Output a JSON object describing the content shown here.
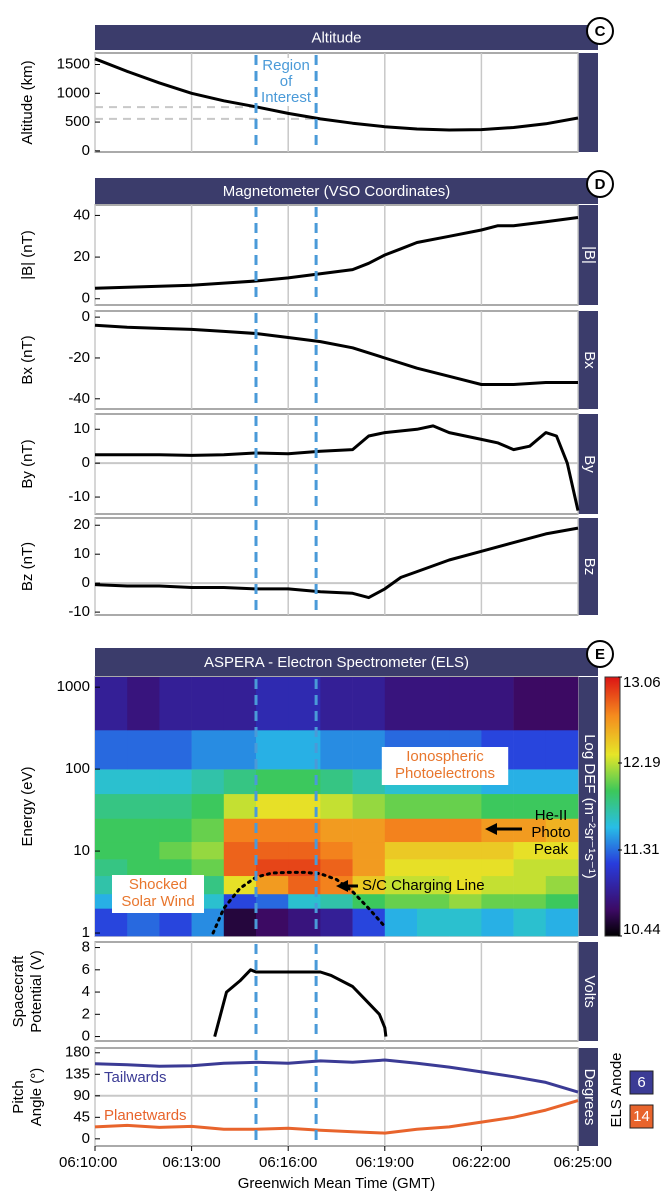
{
  "time_axis": {
    "xlim": [
      "06:10:00",
      "06:25:00"
    ],
    "xticks": [
      "06:10:00",
      "06:13:00",
      "06:16:00",
      "06:19:00",
      "06:22:00",
      "06:25:00"
    ],
    "xlabel": "Greenwich Mean Time (GMT)",
    "grid": true
  },
  "region_of_interest": {
    "x": [
      "06:15:00",
      "06:16:52"
    ],
    "label": [
      "Region",
      "of",
      "Interest"
    ],
    "color": "#4a9ad8"
  },
  "sections": [
    {
      "letter": "C",
      "title": "Altitude"
    },
    {
      "letter": "D",
      "title": "Magnetometer (VSO Coordinates)"
    },
    {
      "letter": "E",
      "title": "ASPERA - Electron Spectrometer (ELS)"
    }
  ],
  "chart_data": [
    {
      "type": "line",
      "ylabel": [
        "Altitude (km)"
      ],
      "ylim": [
        -20,
        1700
      ],
      "yticks": [
        0,
        500,
        1000,
        1500
      ],
      "hlines": [
        {
          "y": 760,
          "x": [
            "06:10:00",
            "06:15:00"
          ],
          "dash": true
        },
        {
          "y": 555,
          "x": [
            "06:10:00",
            "06:16:52"
          ],
          "dash": true
        }
      ],
      "series": [
        {
          "color": "#000000",
          "x": [
            "06:10:00",
            "06:11:00",
            "06:12:00",
            "06:13:00",
            "06:14:00",
            "06:15:00",
            "06:16:00",
            "06:17:00",
            "06:18:00",
            "06:19:00",
            "06:20:00",
            "06:21:00",
            "06:22:00",
            "06:23:00",
            "06:24:00",
            "06:25:00"
          ],
          "values": [
            1600,
            1380,
            1180,
            1000,
            870,
            765,
            650,
            555,
            480,
            420,
            380,
            362,
            370,
            405,
            470,
            570
          ]
        }
      ]
    },
    {
      "type": "line",
      "ylabel": [
        "|B| (nT)"
      ],
      "side_label": "|B|",
      "ylim": [
        -3,
        45
      ],
      "yticks": [
        0,
        20,
        40
      ],
      "series": [
        {
          "color": "#000000",
          "x": [
            "06:10:00",
            "06:11:00",
            "06:12:00",
            "06:13:00",
            "06:14:00",
            "06:15:00",
            "06:16:00",
            "06:17:00",
            "06:18:00",
            "06:18:30",
            "06:19:00",
            "06:19:30",
            "06:20:00",
            "06:21:00",
            "06:22:00",
            "06:22:30",
            "06:23:00",
            "06:24:00",
            "06:24:30",
            "06:25:00"
          ],
          "values": [
            5,
            5.5,
            6,
            6.5,
            7.5,
            8.5,
            10,
            12,
            14,
            17,
            21,
            24,
            27,
            30,
            33,
            35,
            35,
            37,
            38,
            39
          ]
        }
      ]
    },
    {
      "type": "line",
      "ylabel": [
        "Bx (nT)"
      ],
      "side_label": "Bx",
      "ylim": [
        -45,
        3
      ],
      "yticks": [
        0,
        -20,
        -40
      ],
      "series": [
        {
          "color": "#000000",
          "x": [
            "06:10:00",
            "06:11:00",
            "06:12:00",
            "06:13:00",
            "06:14:00",
            "06:15:00",
            "06:16:00",
            "06:17:00",
            "06:18:00",
            "06:19:00",
            "06:20:00",
            "06:21:00",
            "06:22:00",
            "06:23:00",
            "06:24:00",
            "06:25:00"
          ],
          "values": [
            -4,
            -5,
            -5.5,
            -6,
            -7,
            -8,
            -10,
            -12,
            -15,
            -20,
            -25,
            -29,
            -33,
            -33,
            -32,
            -32
          ]
        }
      ]
    },
    {
      "type": "line",
      "ylabel": [
        "By (nT)"
      ],
      "side_label": "By",
      "ylim": [
        -15,
        14.5
      ],
      "yticks": [
        10,
        0,
        -10
      ],
      "hlines": [
        {
          "y": 0
        }
      ],
      "series": [
        {
          "color": "#000000",
          "x": [
            "06:10:00",
            "06:11:00",
            "06:12:00",
            "06:13:00",
            "06:14:00",
            "06:15:00",
            "06:16:00",
            "06:17:00",
            "06:18:00",
            "06:18:30",
            "06:19:00",
            "06:20:00",
            "06:20:30",
            "06:21:00",
            "06:22:00",
            "06:22:30",
            "06:23:00",
            "06:23:30",
            "06:24:00",
            "06:24:20",
            "06:24:40",
            "06:25:00"
          ],
          "values": [
            2.5,
            2.5,
            2.5,
            2.3,
            2.5,
            3,
            2.8,
            3.5,
            4,
            8,
            9,
            10,
            11,
            9,
            7,
            6,
            4,
            5,
            9,
            8,
            0,
            -14
          ]
        }
      ]
    },
    {
      "type": "line",
      "ylabel": [
        "Bz (nT)"
      ],
      "side_label": "Bz",
      "ylim": [
        -11,
        22.5
      ],
      "yticks": [
        20,
        10,
        0,
        -10
      ],
      "hlines": [
        {
          "y": 0
        }
      ],
      "series": [
        {
          "color": "#000000",
          "x": [
            "06:10:00",
            "06:11:00",
            "06:12:00",
            "06:13:00",
            "06:14:00",
            "06:15:00",
            "06:16:00",
            "06:17:00",
            "06:18:00",
            "06:18:30",
            "06:19:00",
            "06:19:30",
            "06:20:00",
            "06:21:00",
            "06:22:00",
            "06:23:00",
            "06:24:00",
            "06:25:00"
          ],
          "values": [
            -0.5,
            -1,
            -1,
            -1.5,
            -1.5,
            -2,
            -2,
            -3,
            -3.5,
            -5,
            -2,
            2,
            4,
            8,
            11,
            14,
            17,
            19
          ]
        }
      ]
    },
    {
      "type": "heatmap",
      "ylabel": [
        "Energy (eV)"
      ],
      "side_label": "Log DEF (m⁻²sr⁻¹s⁻¹)",
      "log": true,
      "ylim": [
        0.92,
        1330
      ],
      "yticks": [
        1,
        10,
        100,
        1000
      ],
      "x_bins": [
        "06:10:00",
        "06:11:00",
        "06:12:00",
        "06:13:00",
        "06:14:00",
        "06:15:00",
        "06:16:00",
        "06:17:00",
        "06:18:00",
        "06:19:00",
        "06:20:00",
        "06:21:00",
        "06:22:00",
        "06:23:00",
        "06:24:00",
        "06:25:00"
      ],
      "energy_bins": [
        0.92,
        2,
        3,
        5,
        8,
        13,
        25,
        50,
        100,
        300,
        1330
      ],
      "z": [
        [
          11.2,
          11.3,
          11.2,
          11.4,
          10.6,
          10.7,
          10.8,
          10.9,
          11.2,
          11.5,
          11.6,
          11.6,
          11.5,
          11.6,
          11.5
        ],
        [
          11.5,
          11.6,
          11.5,
          11.6,
          11.2,
          11.3,
          11.6,
          11.7,
          11.9,
          12.0,
          12.0,
          12.1,
          12.0,
          12.0,
          11.9
        ],
        [
          11.7,
          11.8,
          11.7,
          11.8,
          12.3,
          12.6,
          12.8,
          12.7,
          12.4,
          12.2,
          12.2,
          12.3,
          12.2,
          12.2,
          12.1
        ],
        [
          11.8,
          11.9,
          11.9,
          12.0,
          12.8,
          12.9,
          12.9,
          12.8,
          12.6,
          12.3,
          12.3,
          12.3,
          12.3,
          12.2,
          12.2
        ],
        [
          11.9,
          11.9,
          12.0,
          12.1,
          12.8,
          12.8,
          12.8,
          12.7,
          12.6,
          12.4,
          12.4,
          12.4,
          12.4,
          12.3,
          12.3
        ],
        [
          11.9,
          11.9,
          11.9,
          12.0,
          12.7,
          12.7,
          12.7,
          12.6,
          12.6,
          12.7,
          12.7,
          12.7,
          12.6,
          12.6,
          12.5
        ],
        [
          11.8,
          11.8,
          11.8,
          11.9,
          12.2,
          12.3,
          12.3,
          12.2,
          12.1,
          12.0,
          12.0,
          12.0,
          11.9,
          11.9,
          11.9
        ],
        [
          11.6,
          11.6,
          11.6,
          11.7,
          11.8,
          11.9,
          11.9,
          11.8,
          11.7,
          11.6,
          11.6,
          11.6,
          11.5,
          11.5,
          11.5
        ],
        [
          11.3,
          11.3,
          11.3,
          11.4,
          11.4,
          11.5,
          11.5,
          11.4,
          11.4,
          11.3,
          11.3,
          11.3,
          11.2,
          11.2,
          11.2
        ],
        [
          10.9,
          10.8,
          10.9,
          10.9,
          10.9,
          11.0,
          11.0,
          10.9,
          10.9,
          10.8,
          10.8,
          10.8,
          10.8,
          10.7,
          10.7
        ]
      ],
      "colorbar": {
        "clim": [
          10.44,
          13.06
        ],
        "ticks": [
          10.44,
          11.31,
          12.19,
          13.06
        ]
      },
      "charging_line": {
        "name": "S/C Charging Line",
        "x": [
          "06:13:40",
          "06:14:00",
          "06:14:30",
          "06:15:00",
          "06:15:30",
          "06:16:00",
          "06:16:30",
          "06:17:00",
          "06:17:30",
          "06:18:00",
          "06:18:30",
          "06:19:00"
        ],
        "values": [
          1,
          2,
          3.5,
          4.8,
          5.4,
          5.5,
          5.5,
          5.3,
          4.5,
          3.2,
          2,
          1.2
        ]
      },
      "annotations": [
        {
          "text": [
            "Shocked",
            "Solar Wind"
          ],
          "color": "#e8762d"
        },
        {
          "text": [
            "Ionospheric",
            "Photoelectrons"
          ],
          "color": "#e8762d"
        },
        {
          "text": [
            "He-II",
            "Photo",
            "Peak"
          ],
          "color": "#000000"
        }
      ]
    },
    {
      "type": "line",
      "ylabel": [
        "Spacecraft",
        "Potential (V)"
      ],
      "side_label": "Volts",
      "ylim": [
        -0.4,
        8.5
      ],
      "yticks": [
        0,
        2,
        4,
        6,
        8
      ],
      "series": [
        {
          "color": "#000000",
          "x": [
            "06:13:43",
            "06:14:05",
            "06:14:30",
            "06:14:50",
            "06:15:00",
            "06:15:30",
            "06:16:00",
            "06:16:30",
            "06:17:00",
            "06:17:20",
            "06:18:00",
            "06:18:20",
            "06:18:50",
            "06:19:00",
            "06:19:02"
          ],
          "values": [
            0,
            4,
            5,
            6,
            5.8,
            5.8,
            5.8,
            5.8,
            5.8,
            5.5,
            4.5,
            3.5,
            2,
            0.8,
            0
          ]
        }
      ]
    },
    {
      "type": "line",
      "ylabel": [
        "Pitch",
        "Angle (°)"
      ],
      "side_label": "Degrees",
      "ylim": [
        -15,
        190
      ],
      "yticks": [
        0,
        45,
        90,
        135,
        180
      ],
      "hlines": [
        {
          "y": 90
        }
      ],
      "legend_title": "ELS Anode",
      "series": [
        {
          "name": "6",
          "color": "#3b3b95",
          "x": [
            "06:10:00",
            "06:11:00",
            "06:12:00",
            "06:13:00",
            "06:14:00",
            "06:15:00",
            "06:16:00",
            "06:17:00",
            "06:18:00",
            "06:19:00",
            "06:20:00",
            "06:21:00",
            "06:22:00",
            "06:23:00",
            "06:24:00",
            "06:25:00"
          ],
          "values": [
            157,
            155,
            152,
            153,
            158,
            160,
            158,
            163,
            160,
            165,
            158,
            150,
            140,
            130,
            118,
            98
          ]
        },
        {
          "name": "14",
          "color": "#e8642c",
          "x": [
            "06:10:00",
            "06:11:00",
            "06:12:00",
            "06:13:00",
            "06:14:00",
            "06:15:00",
            "06:16:00",
            "06:17:00",
            "06:18:00",
            "06:19:00",
            "06:20:00",
            "06:21:00",
            "06:22:00",
            "06:23:00",
            "06:24:00",
            "06:25:00"
          ],
          "values": [
            25,
            28,
            24,
            26,
            20,
            20,
            22,
            18,
            15,
            12,
            20,
            25,
            35,
            45,
            60,
            80
          ]
        }
      ],
      "annotations": [
        {
          "text": [
            "Tailwards"
          ],
          "color": "#3b3b95"
        },
        {
          "text": [
            "Planetwards"
          ],
          "color": "#e8642c"
        }
      ]
    }
  ]
}
